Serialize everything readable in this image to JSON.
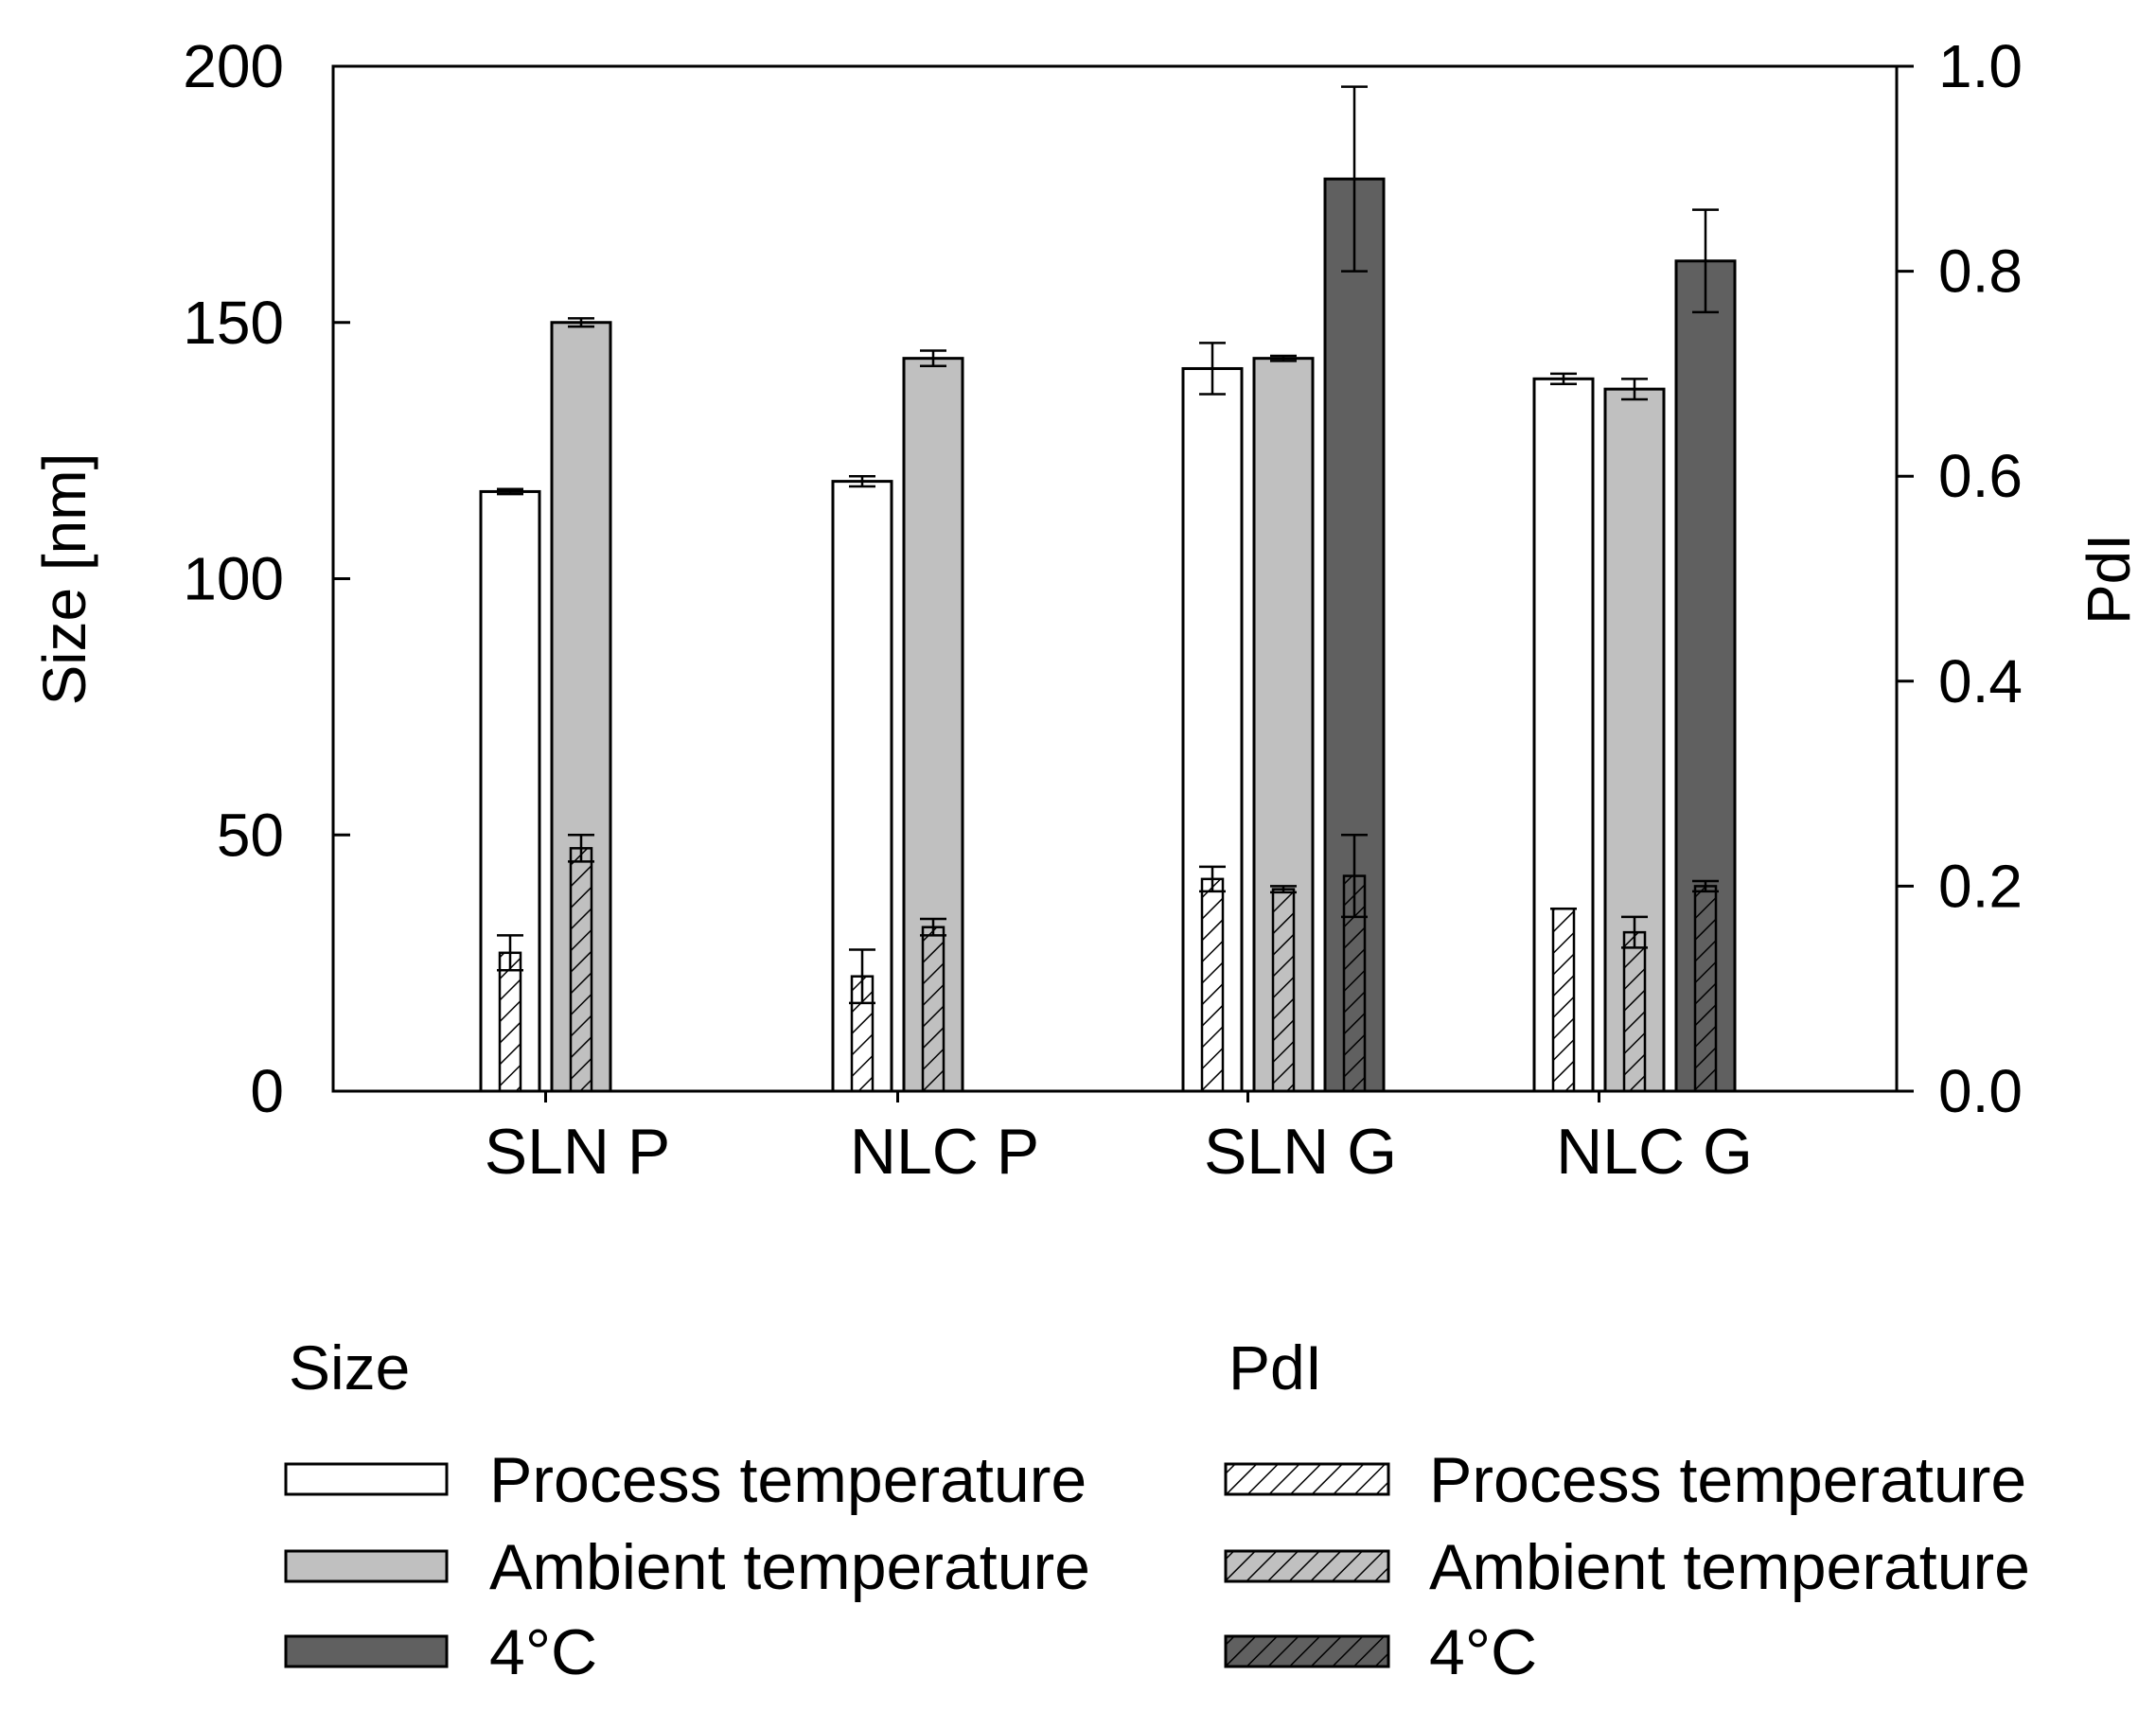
{
  "chart_data": {
    "type": "bar",
    "categories": [
      "SLN P",
      "NLC P",
      "SLN G",
      "NLC G"
    ],
    "ylabel": "Size [nm]",
    "y2label": "PdI",
    "ylim": [
      0,
      200
    ],
    "y2lim": [
      0,
      1.0
    ],
    "yticks": [
      "0",
      "50",
      "100",
      "150",
      "200"
    ],
    "y2ticks": [
      "0.0",
      "0.2",
      "0.4",
      "0.6",
      "0.8",
      "1.0"
    ],
    "grid": false,
    "legend_position": "bottom",
    "conditions": [
      "Process temperature",
      "Ambient temperature",
      "4°C"
    ],
    "colors": {
      "process": "#ffffff",
      "ambient": "#c0c0c0",
      "cold": "#606060"
    },
    "size": {
      "heading": "Size",
      "series": [
        {
          "name": "Process temperature",
          "values": [
            117,
            119,
            141,
            139
          ],
          "errors": [
            0.5,
            1,
            5,
            1
          ]
        },
        {
          "name": "Ambient temperature",
          "values": [
            150,
            143,
            143,
            137
          ],
          "errors": [
            0.8,
            1.5,
            0.5,
            2
          ]
        },
        {
          "name": "4°C",
          "values": [
            null,
            null,
            178,
            162
          ],
          "errors": [
            null,
            null,
            18,
            10
          ]
        }
      ]
    },
    "pdi": {
      "heading": "PdI",
      "series": [
        {
          "name": "Process temperature",
          "values": [
            0.135,
            0.112,
            0.207,
            0.178
          ],
          "errors": [
            0.017,
            0.026,
            0.012,
            0.0
          ]
        },
        {
          "name": "Ambient temperature",
          "values": [
            0.237,
            0.16,
            0.197,
            0.155
          ],
          "errors": [
            0.013,
            0.008,
            0.003,
            0.015
          ]
        },
        {
          "name": "4°C",
          "values": [
            null,
            null,
            0.21,
            0.2
          ],
          "errors": [
            null,
            null,
            0.04,
            0.005
          ]
        }
      ]
    }
  }
}
